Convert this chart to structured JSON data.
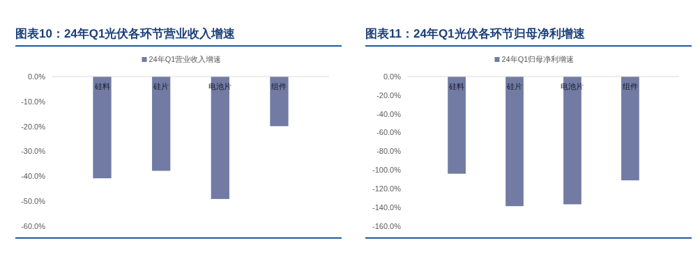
{
  "chart_data": [
    {
      "type": "bar",
      "title": "图表10：24年Q1光伏各环节营业收入增速",
      "categories": [
        "硅料",
        "硅片",
        "电池片",
        "组件"
      ],
      "series": [
        {
          "name": "24年Q1营业收入增速",
          "color": "#717ba3",
          "values": [
            -40.8,
            -37.8,
            -49.1,
            -19.9
          ]
        }
      ],
      "ylim": [
        -60,
        0
      ],
      "yticks": [
        {
          "value": 0,
          "label": "0.0%"
        },
        {
          "value": -10,
          "label": "-10.0%"
        },
        {
          "value": -20,
          "label": "-20.0%"
        },
        {
          "value": -30,
          "label": "-30.0%"
        },
        {
          "value": -40,
          "label": "-40.0%"
        },
        {
          "value": -50,
          "label": "-50.0%"
        },
        {
          "value": -60,
          "label": "-60.0%"
        }
      ],
      "grid": false,
      "legend": "top"
    },
    {
      "type": "bar",
      "title": "图表11：24年Q1光伏各环节归母净利增速",
      "categories": [
        "硅料",
        "硅片",
        "电池片",
        "组件"
      ],
      "series": [
        {
          "name": "24年Q1归母净利增速",
          "color": "#717ba3",
          "values": [
            -103.9,
            -138.6,
            -136.6,
            -111
          ]
        }
      ],
      "ylim": [
        -160,
        0
      ],
      "yticks": [
        {
          "value": 0,
          "label": "0.0%"
        },
        {
          "value": -20,
          "label": "-20.0%"
        },
        {
          "value": -40,
          "label": "-40.0%"
        },
        {
          "value": -60,
          "label": "-60.0%"
        },
        {
          "value": -80,
          "label": "-80.0%"
        },
        {
          "value": -100,
          "label": "-100.0%"
        },
        {
          "value": -120,
          "label": "-120.0%"
        },
        {
          "value": -140,
          "label": "-140.0%"
        },
        {
          "value": -160,
          "label": "-160.0%"
        }
      ],
      "grid": false,
      "legend": "top"
    }
  ]
}
